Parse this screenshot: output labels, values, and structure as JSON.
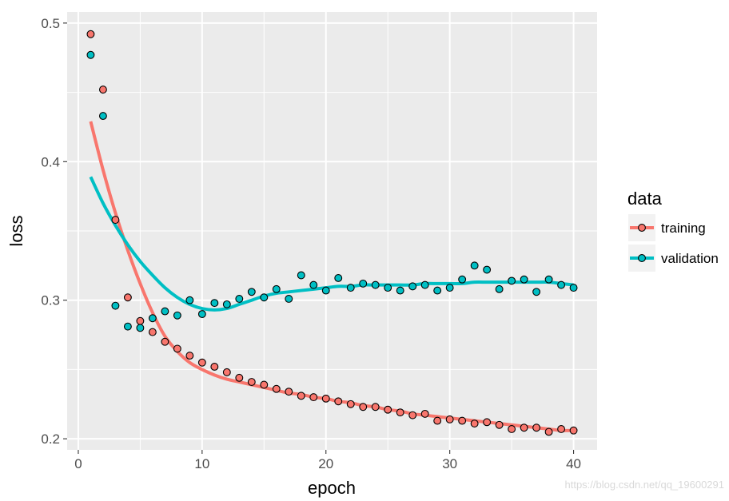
{
  "chart_data": {
    "type": "scatter",
    "xlabel": "epoch",
    "ylabel": "loss",
    "xlim": [
      -0.9,
      41.9
    ],
    "ylim": [
      0.192,
      0.508
    ],
    "x_ticks": [
      0,
      10,
      20,
      30,
      40
    ],
    "x_minor_ticks": [
      5,
      15,
      25,
      35
    ],
    "y_ticks": [
      0.2,
      0.3,
      0.4,
      0.5
    ],
    "y_minor_ticks": [
      0.25,
      0.35,
      0.45
    ],
    "x_tick_labels": [
      "0",
      "10",
      "20",
      "30",
      "40"
    ],
    "y_tick_labels": [
      "0.2",
      "0.3",
      "0.4",
      "0.5"
    ],
    "grid": true,
    "panel_background": "#ebebeb",
    "legend": {
      "title": "data",
      "placement": "right"
    },
    "series": [
      {
        "name": "training",
        "color": "#f8766d",
        "x": [
          1,
          2,
          3,
          4,
          5,
          6,
          7,
          8,
          9,
          10,
          11,
          12,
          13,
          14,
          15,
          16,
          17,
          18,
          19,
          20,
          21,
          22,
          23,
          24,
          25,
          26,
          27,
          28,
          29,
          30,
          31,
          32,
          33,
          34,
          35,
          36,
          37,
          38,
          39,
          40
        ],
        "values": [
          0.492,
          0.452,
          0.358,
          0.302,
          0.285,
          0.277,
          0.27,
          0.265,
          0.26,
          0.255,
          0.252,
          0.248,
          0.244,
          0.241,
          0.239,
          0.236,
          0.234,
          0.231,
          0.23,
          0.229,
          0.227,
          0.225,
          0.223,
          0.223,
          0.221,
          0.219,
          0.217,
          0.218,
          0.213,
          0.214,
          0.213,
          0.211,
          0.212,
          0.21,
          0.207,
          0.208,
          0.208,
          0.205,
          0.207,
          0.206
        ],
        "smooth": [
          [
            1,
            0.429
          ],
          [
            2,
            0.394
          ],
          [
            3,
            0.363
          ],
          [
            4,
            0.336
          ],
          [
            5,
            0.312
          ],
          [
            6,
            0.291
          ],
          [
            7,
            0.274
          ],
          [
            8,
            0.263
          ],
          [
            9,
            0.255
          ],
          [
            10,
            0.25
          ],
          [
            11,
            0.246
          ],
          [
            12,
            0.243
          ],
          [
            13,
            0.241
          ],
          [
            14,
            0.239
          ],
          [
            15,
            0.237
          ],
          [
            16,
            0.235
          ],
          [
            17,
            0.233
          ],
          [
            18,
            0.232
          ],
          [
            19,
            0.23
          ],
          [
            20,
            0.229
          ],
          [
            21,
            0.227
          ],
          [
            22,
            0.226
          ],
          [
            23,
            0.224
          ],
          [
            24,
            0.223
          ],
          [
            25,
            0.221
          ],
          [
            26,
            0.22
          ],
          [
            27,
            0.218
          ],
          [
            28,
            0.217
          ],
          [
            29,
            0.216
          ],
          [
            30,
            0.215
          ],
          [
            31,
            0.214
          ],
          [
            32,
            0.213
          ],
          [
            33,
            0.212
          ],
          [
            34,
            0.211
          ],
          [
            35,
            0.21
          ],
          [
            36,
            0.209
          ],
          [
            37,
            0.208
          ],
          [
            38,
            0.207
          ],
          [
            39,
            0.206
          ],
          [
            40,
            0.206
          ]
        ]
      },
      {
        "name": "validation",
        "color": "#00bfc4",
        "x": [
          1,
          2,
          3,
          4,
          5,
          6,
          7,
          8,
          9,
          10,
          11,
          12,
          13,
          14,
          15,
          16,
          17,
          18,
          19,
          20,
          21,
          22,
          23,
          24,
          25,
          26,
          27,
          28,
          29,
          30,
          31,
          32,
          33,
          34,
          35,
          36,
          37,
          38,
          39,
          40
        ],
        "values": [
          0.477,
          0.433,
          0.296,
          0.281,
          0.28,
          0.287,
          0.292,
          0.289,
          0.3,
          0.29,
          0.298,
          0.297,
          0.301,
          0.306,
          0.302,
          0.308,
          0.301,
          0.318,
          0.311,
          0.307,
          0.316,
          0.309,
          0.312,
          0.311,
          0.309,
          0.307,
          0.31,
          0.311,
          0.307,
          0.309,
          0.315,
          0.325,
          0.322,
          0.308,
          0.314,
          0.315,
          0.306,
          0.315,
          0.311,
          0.309
        ],
        "smooth": [
          [
            1,
            0.389
          ],
          [
            2,
            0.37
          ],
          [
            3,
            0.354
          ],
          [
            4,
            0.34
          ],
          [
            5,
            0.328
          ],
          [
            6,
            0.318
          ],
          [
            7,
            0.309
          ],
          [
            8,
            0.302
          ],
          [
            9,
            0.297
          ],
          [
            10,
            0.294
          ],
          [
            11,
            0.293
          ],
          [
            12,
            0.294
          ],
          [
            13,
            0.297
          ],
          [
            14,
            0.3
          ],
          [
            15,
            0.303
          ],
          [
            16,
            0.305
          ],
          [
            17,
            0.306
          ],
          [
            18,
            0.307
          ],
          [
            19,
            0.308
          ],
          [
            20,
            0.309
          ],
          [
            21,
            0.31
          ],
          [
            22,
            0.31
          ],
          [
            23,
            0.311
          ],
          [
            24,
            0.311
          ],
          [
            25,
            0.311
          ],
          [
            26,
            0.311
          ],
          [
            27,
            0.311
          ],
          [
            28,
            0.312
          ],
          [
            29,
            0.312
          ],
          [
            30,
            0.312
          ],
          [
            31,
            0.312
          ],
          [
            32,
            0.313
          ],
          [
            33,
            0.313
          ],
          [
            34,
            0.313
          ],
          [
            35,
            0.313
          ],
          [
            36,
            0.313
          ],
          [
            37,
            0.313
          ],
          [
            38,
            0.313
          ],
          [
            39,
            0.312
          ],
          [
            40,
            0.311
          ]
        ]
      }
    ]
  },
  "watermark": "https://blog.csdn.net/qq_19600291"
}
